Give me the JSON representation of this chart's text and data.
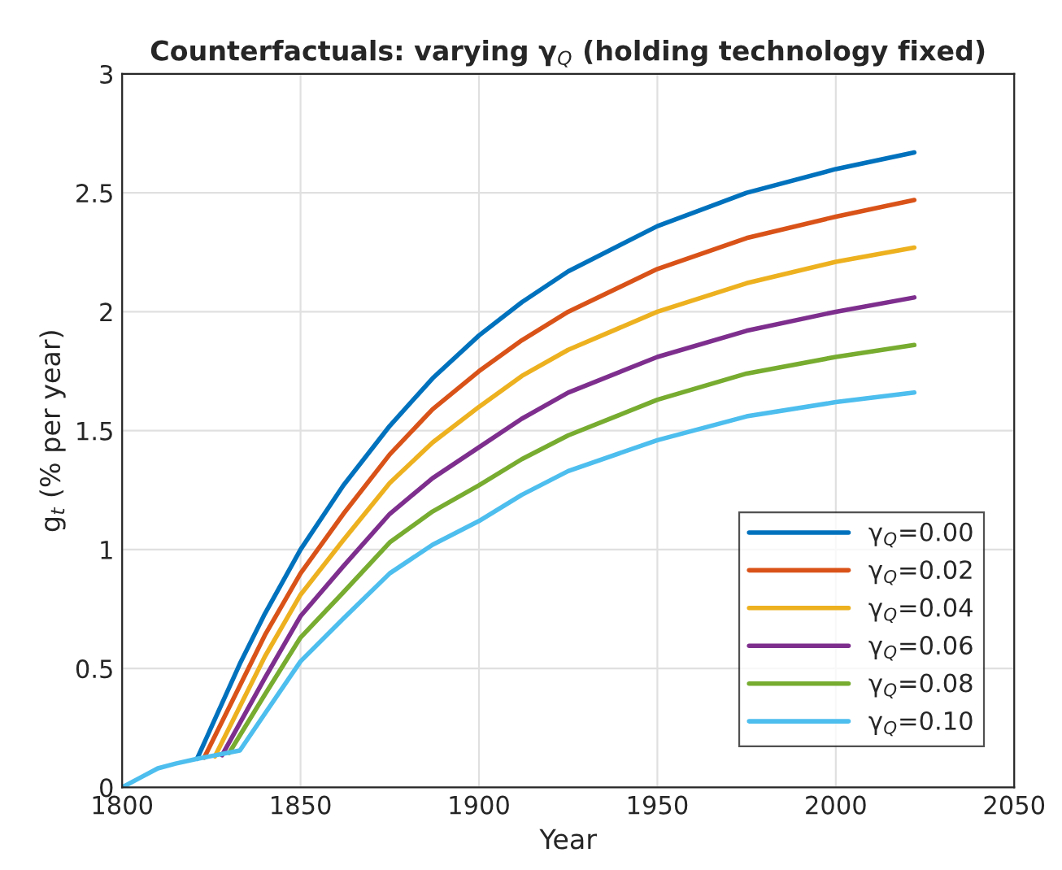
{
  "chart_data": {
    "type": "line",
    "title": "Counterfactuals: varying γ$_{Q}$ (holding technology fixed)",
    "xlabel": "Year",
    "ylabel": "g$_{t}$ (% per year)",
    "xlim": [
      1800,
      2050
    ],
    "xticks": [
      1800,
      1850,
      1900,
      1950,
      2000,
      2050
    ],
    "ylim": [
      0,
      3
    ],
    "yticks": [
      0,
      0.5,
      1,
      1.5,
      2,
      2.5,
      3
    ],
    "grid": true,
    "legend": "bottom right",
    "series": [
      {
        "name": "γ$_{Q}$=0.00",
        "color": "#0072bd",
        "x": [
          1821,
          1833,
          1840,
          1850,
          1862,
          1875,
          1887,
          1900,
          1912,
          1925,
          1950,
          1975,
          2000,
          2022
        ],
        "values": [
          0.12,
          0.52,
          0.73,
          1.0,
          1.27,
          1.52,
          1.72,
          1.9,
          2.04,
          2.17,
          2.36,
          2.5,
          2.6,
          2.67
        ]
      },
      {
        "name": "γ$_{Q}$=0.02",
        "color": "#d95319",
        "x": [
          1823,
          1840,
          1850,
          1862,
          1875,
          1887,
          1900,
          1912,
          1925,
          1950,
          1975,
          2000,
          2022
        ],
        "values": [
          0.125,
          0.64,
          0.9,
          1.15,
          1.4,
          1.59,
          1.75,
          1.88,
          2.0,
          2.18,
          2.31,
          2.4,
          2.47
        ]
      },
      {
        "name": "γ$_{Q}$=0.04",
        "color": "#edb120",
        "x": [
          1826,
          1840,
          1850,
          1862,
          1875,
          1887,
          1900,
          1912,
          1925,
          1950,
          1975,
          2000,
          2022
        ],
        "values": [
          0.13,
          0.55,
          0.81,
          1.04,
          1.28,
          1.45,
          1.6,
          1.73,
          1.84,
          2.0,
          2.12,
          2.21,
          2.27
        ]
      },
      {
        "name": "γ$_{Q}$=0.06",
        "color": "#7e2f8e",
        "x": [
          1828,
          1840,
          1850,
          1862,
          1875,
          1887,
          1900,
          1912,
          1925,
          1950,
          1975,
          2000,
          2022
        ],
        "values": [
          0.135,
          0.46,
          0.72,
          0.93,
          1.15,
          1.3,
          1.43,
          1.55,
          1.66,
          1.81,
          1.92,
          2.0,
          2.06
        ]
      },
      {
        "name": "γ$_{Q}$=0.08",
        "color": "#77ac30",
        "x": [
          1830,
          1840,
          1850,
          1862,
          1875,
          1887,
          1900,
          1912,
          1925,
          1950,
          1975,
          2000,
          2022
        ],
        "values": [
          0.145,
          0.39,
          0.63,
          0.82,
          1.03,
          1.16,
          1.27,
          1.38,
          1.48,
          1.63,
          1.74,
          1.81,
          1.86
        ]
      },
      {
        "name": "γ$_{Q}$=0.10",
        "color": "#4dbeee",
        "x": [
          1800,
          1805,
          1810,
          1815,
          1821,
          1833,
          1840,
          1850,
          1862,
          1875,
          1887,
          1900,
          1912,
          1925,
          1950,
          1975,
          2000,
          2022
        ],
        "values": [
          0,
          0.04,
          0.08,
          0.1,
          0.12,
          0.155,
          0.31,
          0.53,
          0.71,
          0.9,
          1.02,
          1.12,
          1.23,
          1.33,
          1.46,
          1.56,
          1.62,
          1.66
        ]
      }
    ]
  }
}
